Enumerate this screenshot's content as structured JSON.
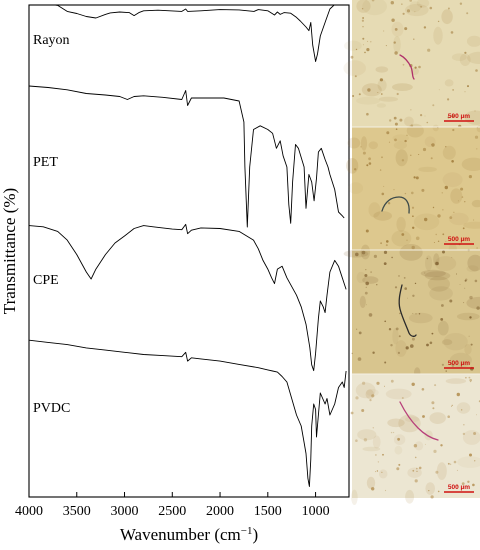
{
  "chart_data": {
    "type": "line",
    "xlabel": "Wavenumber (cm⁻¹)",
    "ylabel": "Transmittance (%)",
    "xlim": [
      4000,
      650
    ],
    "x_reversed": true,
    "x_ticks": [
      4000,
      3500,
      3000,
      2500,
      2000,
      1500,
      1000
    ],
    "y_ticks_shown": false,
    "grid": false,
    "series": [
      {
        "name": "Rayon",
        "points": [
          [
            4000,
            0.9
          ],
          [
            3900,
            0.88
          ],
          [
            3780,
            0.86
          ],
          [
            3700,
            0.82
          ],
          [
            3600,
            0.62
          ],
          [
            3500,
            0.55
          ],
          [
            3400,
            0.45
          ],
          [
            3300,
            0.4
          ],
          [
            3200,
            0.52
          ],
          [
            3150,
            0.57
          ],
          [
            3050,
            0.6
          ],
          [
            2950,
            0.58
          ],
          [
            2900,
            0.48
          ],
          [
            2850,
            0.58
          ],
          [
            2800,
            0.64
          ],
          [
            2650,
            0.66
          ],
          [
            2400,
            0.62
          ],
          [
            2360,
            0.7
          ],
          [
            2340,
            0.62
          ],
          [
            2200,
            0.64
          ],
          [
            2000,
            0.68
          ],
          [
            1800,
            0.67
          ],
          [
            1645,
            0.62
          ],
          [
            1600,
            0.68
          ],
          [
            1500,
            0.64
          ],
          [
            1430,
            0.5
          ],
          [
            1400,
            0.6
          ],
          [
            1370,
            0.52
          ],
          [
            1330,
            0.58
          ],
          [
            1260,
            0.56
          ],
          [
            1200,
            0.42
          ],
          [
            1160,
            0.3
          ],
          [
            1100,
            0.1
          ],
          [
            1070,
            -0.02
          ],
          [
            1050,
            0.25
          ],
          [
            1030,
            -0.5
          ],
          [
            1000,
            -1.05
          ],
          [
            980,
            -0.8
          ],
          [
            950,
            -0.2
          ],
          [
            895,
            0.3
          ],
          [
            850,
            0.7
          ],
          [
            800,
            0.85
          ],
          [
            750,
            0.9
          ],
          [
            700,
            0.92
          ],
          [
            650,
            0.95
          ]
        ]
      },
      {
        "name": "PET",
        "points": [
          [
            4000,
            0.88
          ],
          [
            3800,
            0.86
          ],
          [
            3600,
            0.83
          ],
          [
            3400,
            0.78
          ],
          [
            3200,
            0.76
          ],
          [
            3050,
            0.74
          ],
          [
            2970,
            0.7
          ],
          [
            2900,
            0.74
          ],
          [
            2800,
            0.75
          ],
          [
            2600,
            0.73
          ],
          [
            2400,
            0.7
          ],
          [
            2360,
            0.82
          ],
          [
            2340,
            0.62
          ],
          [
            2300,
            0.72
          ],
          [
            2100,
            0.72
          ],
          [
            1960,
            0.72
          ],
          [
            1800,
            0.68
          ],
          [
            1750,
            0.4
          ],
          [
            1740,
            -0.2
          ],
          [
            1715,
            -1.0
          ],
          [
            1690,
            -0.2
          ],
          [
            1650,
            0.3
          ],
          [
            1580,
            0.35
          ],
          [
            1500,
            0.3
          ],
          [
            1450,
            0.25
          ],
          [
            1410,
            0.05
          ],
          [
            1370,
            0.15
          ],
          [
            1340,
            -0.05
          ],
          [
            1300,
            -0.2
          ],
          [
            1280,
            -0.7
          ],
          [
            1260,
            -0.95
          ],
          [
            1240,
            -0.4
          ],
          [
            1210,
            0.1
          ],
          [
            1180,
            0.05
          ],
          [
            1120,
            -0.2
          ],
          [
            1100,
            -0.75
          ],
          [
            1070,
            -0.3
          ],
          [
            1040,
            -0.4
          ],
          [
            1015,
            -0.65
          ],
          [
            990,
            -0.35
          ],
          [
            970,
            0.0
          ],
          [
            940,
            0.05
          ],
          [
            900,
            -0.1
          ],
          [
            870,
            -0.2
          ],
          [
            850,
            -0.3
          ],
          [
            800,
            -0.5
          ],
          [
            760,
            -0.8
          ],
          [
            720,
            -0.85
          ],
          [
            700,
            -0.88
          ]
        ]
      },
      {
        "name": "CPE",
        "points": [
          [
            4000,
            0.8
          ],
          [
            3850,
            0.78
          ],
          [
            3700,
            0.7
          ],
          [
            3600,
            0.55
          ],
          [
            3500,
            0.3
          ],
          [
            3400,
            0.0
          ],
          [
            3350,
            -0.12
          ],
          [
            3300,
            0.05
          ],
          [
            3200,
            0.3
          ],
          [
            3100,
            0.5
          ],
          [
            3000,
            0.62
          ],
          [
            2900,
            0.75
          ],
          [
            2800,
            0.8
          ],
          [
            2700,
            0.78
          ],
          [
            2600,
            0.76
          ],
          [
            2500,
            0.74
          ],
          [
            2400,
            0.73
          ],
          [
            2360,
            0.82
          ],
          [
            2340,
            0.66
          ],
          [
            2300,
            0.72
          ],
          [
            2200,
            0.76
          ],
          [
            2000,
            0.75
          ],
          [
            1800,
            0.7
          ],
          [
            1650,
            0.55
          ],
          [
            1600,
            0.4
          ],
          [
            1550,
            0.2
          ],
          [
            1500,
            0.05
          ],
          [
            1460,
            -0.1
          ],
          [
            1430,
            -0.2
          ],
          [
            1400,
            0.05
          ],
          [
            1350,
            0.1
          ],
          [
            1300,
            -0.1
          ],
          [
            1200,
            -0.4
          ],
          [
            1150,
            -0.6
          ],
          [
            1100,
            -0.9
          ],
          [
            1060,
            -1.3
          ],
          [
            1040,
            -1.6
          ],
          [
            1020,
            -1.7
          ],
          [
            1000,
            -1.4
          ],
          [
            970,
            -0.8
          ],
          [
            950,
            -0.5
          ],
          [
            920,
            -0.6
          ],
          [
            900,
            -0.7
          ],
          [
            880,
            -0.4
          ],
          [
            850,
            0.0
          ],
          [
            800,
            0.2
          ],
          [
            760,
            0.1
          ],
          [
            720,
            -0.1
          ],
          [
            700,
            -0.2
          ],
          [
            680,
            -0.3
          ]
        ]
      },
      {
        "name": "PVDC",
        "points": [
          [
            4000,
            0.96
          ],
          [
            3800,
            0.92
          ],
          [
            3600,
            0.88
          ],
          [
            3400,
            0.82
          ],
          [
            3200,
            0.78
          ],
          [
            3000,
            0.74
          ],
          [
            2800,
            0.7
          ],
          [
            2600,
            0.68
          ],
          [
            2400,
            0.66
          ],
          [
            2360,
            0.74
          ],
          [
            2340,
            0.58
          ],
          [
            2300,
            0.64
          ],
          [
            2200,
            0.62
          ],
          [
            2000,
            0.58
          ],
          [
            1800,
            0.52
          ],
          [
            1600,
            0.46
          ],
          [
            1500,
            0.42
          ],
          [
            1450,
            0.4
          ],
          [
            1400,
            0.38
          ],
          [
            1350,
            0.3
          ],
          [
            1300,
            0.2
          ],
          [
            1250,
            -0.1
          ],
          [
            1200,
            -0.4
          ],
          [
            1150,
            -0.6
          ],
          [
            1120,
            -0.9
          ],
          [
            1100,
            -1.1
          ],
          [
            1080,
            -1.55
          ],
          [
            1065,
            -1.7
          ],
          [
            1050,
            -1.2
          ],
          [
            1040,
            -0.6
          ],
          [
            1020,
            -0.2
          ],
          [
            1000,
            -0.3
          ],
          [
            990,
            -0.8
          ],
          [
            970,
            -0.4
          ],
          [
            950,
            0.0
          ],
          [
            900,
            -0.2
          ],
          [
            880,
            -0.1
          ],
          [
            850,
            -0.4
          ],
          [
            800,
            -0.2
          ],
          [
            760,
            0.1
          ],
          [
            720,
            0.2
          ],
          [
            700,
            0.1
          ],
          [
            680,
            0.4
          ]
        ]
      }
    ]
  },
  "micrographs": [
    {
      "scale_bar_label": "500 µm",
      "tint": "#e6dbb4",
      "speck": "#a07a3a",
      "fiber": "#b0306a"
    },
    {
      "scale_bar_label": "500 µm",
      "tint": "#ddc88e",
      "speck": "#9b7534",
      "fiber": "#3c4a4a"
    },
    {
      "scale_bar_label": "500 µm",
      "tint": "#d8c58e",
      "speck": "#7a5a2a",
      "fiber": "#2a2a2a"
    },
    {
      "scale_bar_label": "500 µm",
      "tint": "#ece6d2",
      "speck": "#b08a4a",
      "fiber": "#b8407a"
    }
  ],
  "colors": {
    "line": "#000000",
    "scale_bar": "#d01010"
  }
}
